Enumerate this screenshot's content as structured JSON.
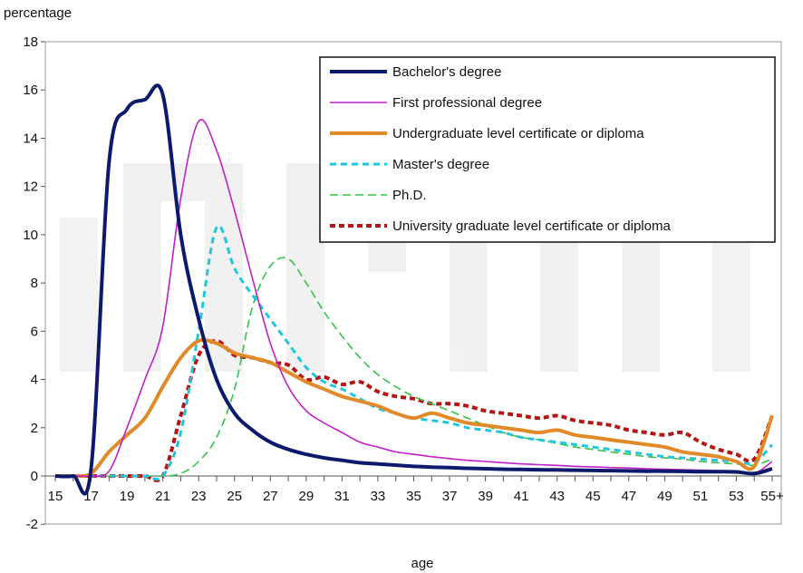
{
  "chart_data": {
    "type": "line",
    "ylabel": "percentage",
    "xlabel": "age",
    "ylim": [
      -2,
      18
    ],
    "yticks": [
      -2,
      0,
      2,
      4,
      6,
      8,
      10,
      12,
      14,
      16,
      18
    ],
    "xlim": [
      15,
      55
    ],
    "xticks": [
      "15",
      "17",
      "19",
      "21",
      "23",
      "25",
      "27",
      "29",
      "31",
      "33",
      "35",
      "37",
      "39",
      "41",
      "43",
      "45",
      "47",
      "49",
      "51",
      "53",
      "55+"
    ],
    "x": [
      15,
      16,
      17,
      18,
      19,
      20,
      21,
      22,
      23,
      24,
      25,
      26,
      27,
      28,
      29,
      30,
      31,
      32,
      33,
      34,
      35,
      36,
      37,
      38,
      39,
      40,
      41,
      42,
      43,
      44,
      45,
      46,
      47,
      48,
      49,
      50,
      51,
      52,
      53,
      54,
      55
    ],
    "legend_position": "top-right",
    "grid": false,
    "series": [
      {
        "name": "Bachelor's degree",
        "color": "#0c1a6b",
        "dash": "solid",
        "width": 4,
        "values": [
          0,
          0,
          0.3,
          13.0,
          15.2,
          15.6,
          15.8,
          10.0,
          6.5,
          4.0,
          2.6,
          1.9,
          1.4,
          1.1,
          0.9,
          0.75,
          0.65,
          0.55,
          0.5,
          0.45,
          0.4,
          0.37,
          0.35,
          0.32,
          0.3,
          0.28,
          0.27,
          0.26,
          0.25,
          0.24,
          0.23,
          0.22,
          0.21,
          0.2,
          0.2,
          0.19,
          0.18,
          0.18,
          0.17,
          0.1,
          0.3
        ]
      },
      {
        "name": "First professional degree",
        "color": "#c020c8",
        "dash": "solid",
        "width": 1.6,
        "values": [
          0,
          0,
          0,
          0.2,
          2.0,
          4.0,
          6.2,
          11.5,
          14.7,
          13.5,
          11.0,
          8.2,
          5.5,
          3.7,
          2.7,
          2.2,
          1.8,
          1.4,
          1.2,
          1.0,
          0.9,
          0.8,
          0.72,
          0.65,
          0.6,
          0.55,
          0.5,
          0.47,
          0.44,
          0.4,
          0.38,
          0.35,
          0.33,
          0.3,
          0.28,
          0.26,
          0.24,
          0.22,
          0.2,
          0.1,
          0.6
        ]
      },
      {
        "name": "Undergraduate level certificate or diploma",
        "color": "#e08a2a",
        "dash": "solid",
        "width": 4,
        "values": [
          0,
          0,
          0.1,
          1.0,
          1.7,
          2.4,
          3.7,
          4.9,
          5.6,
          5.5,
          5.1,
          4.9,
          4.7,
          4.3,
          3.9,
          3.6,
          3.3,
          3.1,
          2.9,
          2.6,
          2.4,
          2.6,
          2.4,
          2.2,
          2.1,
          2.0,
          1.9,
          1.8,
          1.9,
          1.7,
          1.6,
          1.5,
          1.4,
          1.3,
          1.2,
          1.0,
          0.9,
          0.8,
          0.6,
          0.4,
          2.5
        ]
      },
      {
        "name": "Master's degree",
        "color": "#22c6dc",
        "dash": "7,5",
        "width": 3,
        "values": [
          0,
          0,
          0,
          0,
          0,
          0,
          0,
          1.8,
          6.0,
          10.3,
          8.6,
          7.5,
          6.5,
          5.5,
          4.5,
          3.9,
          3.6,
          3.2,
          2.8,
          2.6,
          2.4,
          2.3,
          2.2,
          2.0,
          1.9,
          1.8,
          1.6,
          1.5,
          1.4,
          1.3,
          1.2,
          1.1,
          1.0,
          0.9,
          0.8,
          0.75,
          0.7,
          0.65,
          0.6,
          0.55,
          1.3
        ]
      },
      {
        "name": "Ph.D.",
        "color": "#33c24a",
        "dash": "9,5",
        "width": 1.6,
        "values": [
          0,
          0,
          0,
          0,
          0,
          0,
          0,
          0.1,
          0.6,
          1.6,
          3.6,
          7.0,
          8.7,
          9.0,
          8.0,
          6.8,
          5.8,
          4.9,
          4.2,
          3.7,
          3.3,
          3.0,
          2.7,
          2.4,
          2.1,
          1.8,
          1.6,
          1.5,
          1.35,
          1.2,
          1.1,
          1.0,
          0.9,
          0.8,
          0.75,
          0.7,
          0.6,
          0.55,
          0.5,
          0.45,
          0.7
        ]
      },
      {
        "name": "University graduate level certificate or diploma",
        "color": "#b31515",
        "dash": "6,4",
        "width": 4,
        "values": [
          0,
          0,
          0,
          0,
          0,
          0,
          0,
          2.5,
          5.0,
          5.6,
          5.0,
          4.9,
          4.7,
          4.6,
          4.0,
          4.1,
          3.8,
          3.9,
          3.5,
          3.3,
          3.2,
          3.0,
          3.0,
          2.9,
          2.7,
          2.6,
          2.5,
          2.4,
          2.5,
          2.3,
          2.2,
          2.1,
          1.9,
          1.8,
          1.7,
          1.8,
          1.4,
          1.1,
          0.9,
          0.7,
          2.5
        ]
      }
    ]
  }
}
